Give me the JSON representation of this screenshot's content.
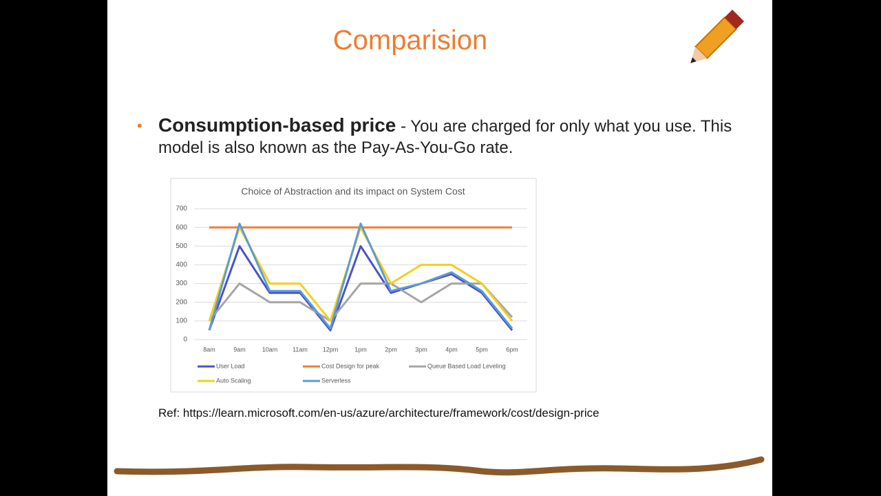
{
  "slide": {
    "title": "Comparision",
    "bullet": {
      "term": "Consumption-based price",
      "text": "- You are charged for only what you use. This model is also known as the Pay-As-You-Go rate."
    },
    "ref": "Ref: https://learn.microsoft.com/en-us/azure/architecture/framework/cost/design-price"
  },
  "chart_data": {
    "type": "line",
    "title": "Choice of Abstraction and its impact on System Cost",
    "categories": [
      "8am",
      "9am",
      "10am",
      "11am",
      "12pm",
      "1pm",
      "2pm",
      "3pm",
      "4pm",
      "5pm",
      "6pm"
    ],
    "series": [
      {
        "name": "User Load",
        "color": "#4a52c6",
        "values": [
          50,
          500,
          250,
          250,
          50,
          500,
          250,
          300,
          350,
          250,
          50
        ]
      },
      {
        "name": "Cost Design for peak",
        "color": "#ed7d31",
        "values": [
          600,
          600,
          600,
          600,
          600,
          600,
          600,
          600,
          600,
          600,
          600
        ]
      },
      {
        "name": "Queue Based Load Leveling",
        "color": "#a5a5a5",
        "values": [
          100,
          300,
          200,
          200,
          100,
          300,
          300,
          200,
          300,
          300,
          120
        ]
      },
      {
        "name": "Auto Scaling",
        "color": "#f2d01c",
        "values": [
          100,
          600,
          300,
          300,
          100,
          600,
          300,
          400,
          400,
          300,
          100
        ]
      },
      {
        "name": "Serverless",
        "color": "#5b9bd5",
        "values": [
          50,
          620,
          260,
          260,
          60,
          620,
          260,
          300,
          360,
          260,
          60
        ]
      }
    ],
    "ylim": [
      0,
      700
    ],
    "yticks": [
      0,
      100,
      200,
      300,
      400,
      500,
      600,
      700
    ],
    "grid": true
  }
}
